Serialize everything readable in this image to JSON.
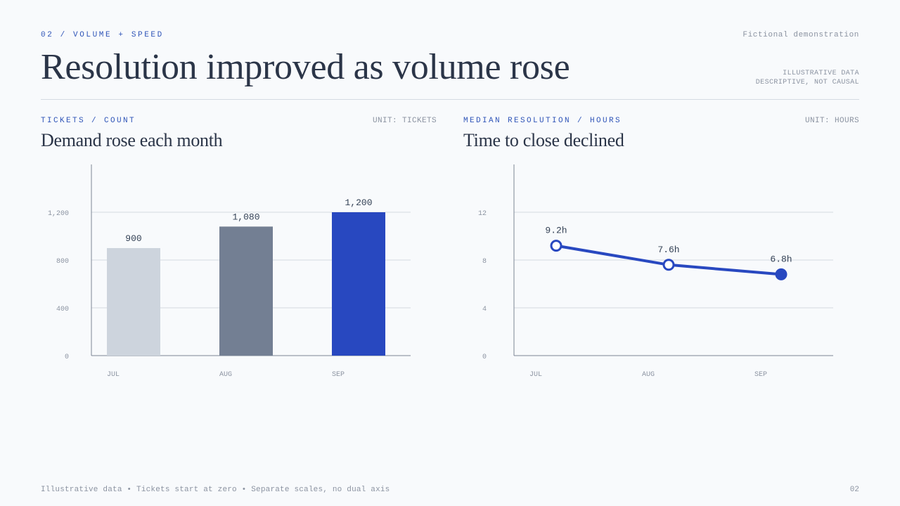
{
  "header": {
    "kicker": "02 / VOLUME + SPEED",
    "note": "Fictional demonstration",
    "title": "Resolution improved as volume rose",
    "badge_line1": "ILLUSTRATIVE DATA",
    "badge_line2": "DESCRIPTIVE, NOT CAUSAL"
  },
  "left_panel": {
    "kicker": "TICKETS / COUNT",
    "unit": "UNIT: TICKETS",
    "title": "Demand rose each month"
  },
  "right_panel": {
    "kicker": "MEDIAN RESOLUTION / HOURS",
    "unit": "UNIT: HOURS",
    "title": "Time to close declined"
  },
  "footer": {
    "text": "Illustrative data • Tickets start at zero • Separate scales, no dual axis",
    "page": "02"
  },
  "chart_data": [
    {
      "type": "bar",
      "categories": [
        "JUL",
        "AUG",
        "SEP"
      ],
      "values": [
        900,
        1080,
        1200
      ],
      "value_labels": [
        "900",
        "1,080",
        "1,200"
      ],
      "colors": [
        "#cdd4dd",
        "#737f93",
        "#2848c0"
      ],
      "ylim": [
        0,
        1600
      ],
      "yticks": [
        0,
        400,
        800,
        1200
      ],
      "ytick_labels": [
        "0",
        "400",
        "800",
        "1,200"
      ],
      "grid": true
    },
    {
      "type": "line",
      "categories": [
        "JUL",
        "AUG",
        "SEP"
      ],
      "values": [
        9.2,
        7.6,
        6.8
      ],
      "value_labels": [
        "9.2h",
        "7.6h",
        "6.8h"
      ],
      "color": "#2848c0",
      "ylim": [
        0,
        16
      ],
      "yticks": [
        0,
        4,
        8,
        12
      ],
      "ytick_labels": [
        "0",
        "4",
        "8",
        "12"
      ],
      "grid": true
    }
  ]
}
